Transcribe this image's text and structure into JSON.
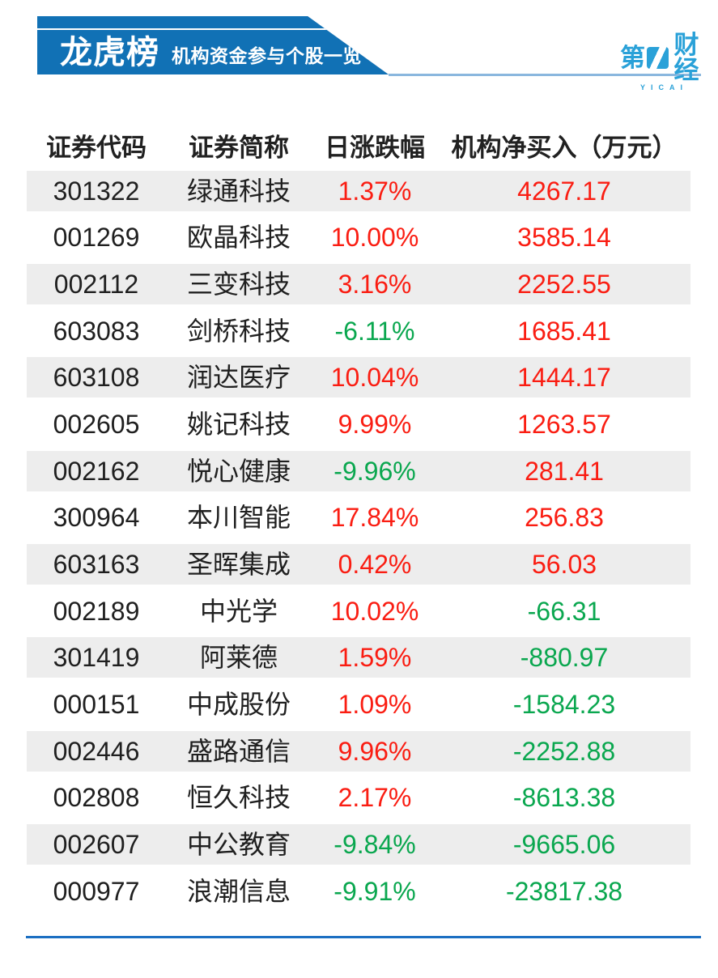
{
  "banner": {
    "title": "龙虎榜",
    "subtitle": "机构资金参与个股一览"
  },
  "logo": {
    "text_left": "第",
    "text_right": "财经",
    "subtext": "YICAI"
  },
  "colors": {
    "banner_blue": "#1171b5",
    "logo_blue": "#2aa1d8",
    "up_red": "#fa1d12",
    "down_green": "#0aa74f",
    "stripe_gray": "#ededed",
    "bottom_rule_blue": "#1c6fc2",
    "light_rule_blue": "#8ab7de"
  },
  "chart_data": {
    "type": "table",
    "title": "龙虎榜",
    "subtitle": "机构资金参与个股一览",
    "columns": [
      "证券代码",
      "证券简称",
      "日涨跌幅",
      "机构净买入（万元）"
    ],
    "rows": [
      {
        "code": "301322",
        "name": "绿通科技",
        "change_pct": "1.37%",
        "net_buy_wan": "4267.17"
      },
      {
        "code": "001269",
        "name": "欧晶科技",
        "change_pct": "10.00%",
        "net_buy_wan": "3585.14"
      },
      {
        "code": "002112",
        "name": "三变科技",
        "change_pct": "3.16%",
        "net_buy_wan": "2252.55"
      },
      {
        "code": "603083",
        "name": "剑桥科技",
        "change_pct": "-6.11%",
        "net_buy_wan": "1685.41"
      },
      {
        "code": "603108",
        "name": "润达医疗",
        "change_pct": "10.04%",
        "net_buy_wan": "1444.17"
      },
      {
        "code": "002605",
        "name": "姚记科技",
        "change_pct": "9.99%",
        "net_buy_wan": "1263.57"
      },
      {
        "code": "002162",
        "name": "悦心健康",
        "change_pct": "-9.96%",
        "net_buy_wan": "281.41"
      },
      {
        "code": "300964",
        "name": "本川智能",
        "change_pct": "17.84%",
        "net_buy_wan": "256.83"
      },
      {
        "code": "603163",
        "name": "圣晖集成",
        "change_pct": "0.42%",
        "net_buy_wan": "56.03"
      },
      {
        "code": "002189",
        "name": "中光学",
        "change_pct": "10.02%",
        "net_buy_wan": "-66.31"
      },
      {
        "code": "301419",
        "name": "阿莱德",
        "change_pct": "1.59%",
        "net_buy_wan": "-880.97"
      },
      {
        "code": "000151",
        "name": "中成股份",
        "change_pct": "1.09%",
        "net_buy_wan": "-1584.23"
      },
      {
        "code": "002446",
        "name": "盛路通信",
        "change_pct": "9.96%",
        "net_buy_wan": "-2252.88"
      },
      {
        "code": "002808",
        "name": "恒久科技",
        "change_pct": "2.17%",
        "net_buy_wan": "-8613.38"
      },
      {
        "code": "002607",
        "name": "中公教育",
        "change_pct": "-9.84%",
        "net_buy_wan": "-9665.06"
      },
      {
        "code": "000977",
        "name": "浪潮信息",
        "change_pct": "-9.91%",
        "net_buy_wan": "-23817.38"
      }
    ]
  }
}
